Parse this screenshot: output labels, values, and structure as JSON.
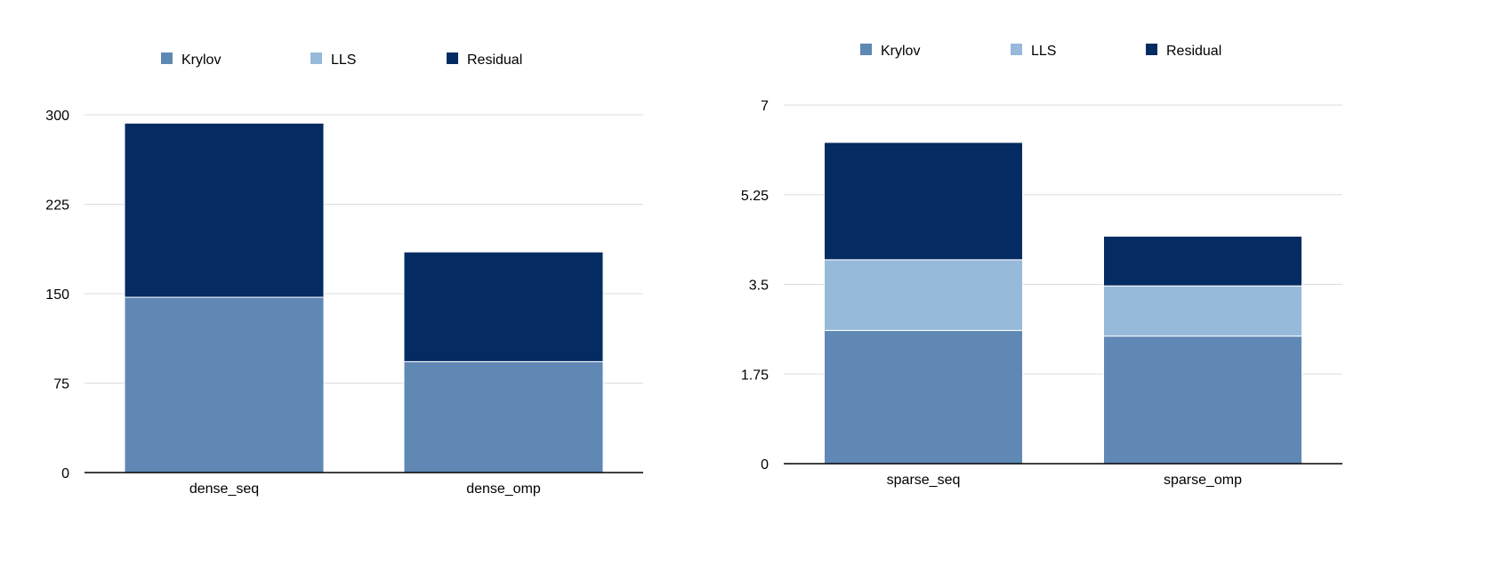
{
  "colors": {
    "Krylov": "#5f88b5",
    "LLS": "#97b9da",
    "Residual": "#042c62",
    "grid": "#dddddd",
    "axis": "#000000"
  },
  "chart_data": [
    {
      "type": "bar",
      "stacked": true,
      "categories": [
        "dense_seq",
        "dense_omp"
      ],
      "series": [
        {
          "name": "Krylov",
          "values": [
            147,
            93
          ]
        },
        {
          "name": "LLS",
          "values": [
            0,
            0
          ]
        },
        {
          "name": "Residual",
          "values": [
            146,
            92
          ]
        }
      ],
      "ylim": [
        0,
        300
      ],
      "yticks": [
        "0",
        "75",
        "150",
        "225",
        "300"
      ],
      "grid": true,
      "legend": "top"
    },
    {
      "type": "bar",
      "stacked": true,
      "categories": [
        "sparse_seq",
        "sparse_omp"
      ],
      "series": [
        {
          "name": "Krylov",
          "values": [
            2.6,
            2.49
          ]
        },
        {
          "name": "LLS",
          "values": [
            1.38,
            0.98
          ]
        },
        {
          "name": "Residual",
          "values": [
            2.29,
            0.97
          ]
        }
      ],
      "ylim": [
        0,
        7
      ],
      "yticks": [
        "0",
        "1.75",
        "3.5",
        "5.25",
        "7"
      ],
      "grid": true,
      "legend": "top"
    }
  ]
}
